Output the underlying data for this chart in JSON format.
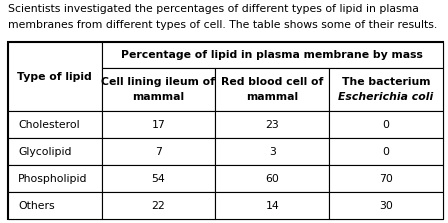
{
  "intro_text_line1": "Scientists investigated the percentages of different types of lipid in plasma",
  "intro_text_line2": "membranes from different types of cell. The table shows some of their results.",
  "col_header_main": "Percentage of lipid in plasma membrane by mass",
  "col_header_row1": "Type of lipid",
  "col_headers_line1": [
    "Cell lining ileum of",
    "Red blood cell of",
    "The bacterium"
  ],
  "col_headers_line2": [
    "mammal",
    "mammal",
    "Escherichia coli"
  ],
  "col_headers_italic": [
    false,
    false,
    true
  ],
  "row_labels": [
    "Cholesterol",
    "Glycolipid",
    "Phospholipid",
    "Others"
  ],
  "table_data": [
    [
      "17",
      "23",
      "0"
    ],
    [
      "7",
      "3",
      "0"
    ],
    [
      "54",
      "60",
      "70"
    ],
    [
      "22",
      "14",
      "30"
    ]
  ],
  "bg_color": "#ffffff",
  "text_color": "#000000",
  "intro_fontsize": 7.8,
  "header_fontsize": 7.8,
  "cell_fontsize": 7.8,
  "fig_width": 4.48,
  "fig_height": 2.23,
  "dpi": 100
}
